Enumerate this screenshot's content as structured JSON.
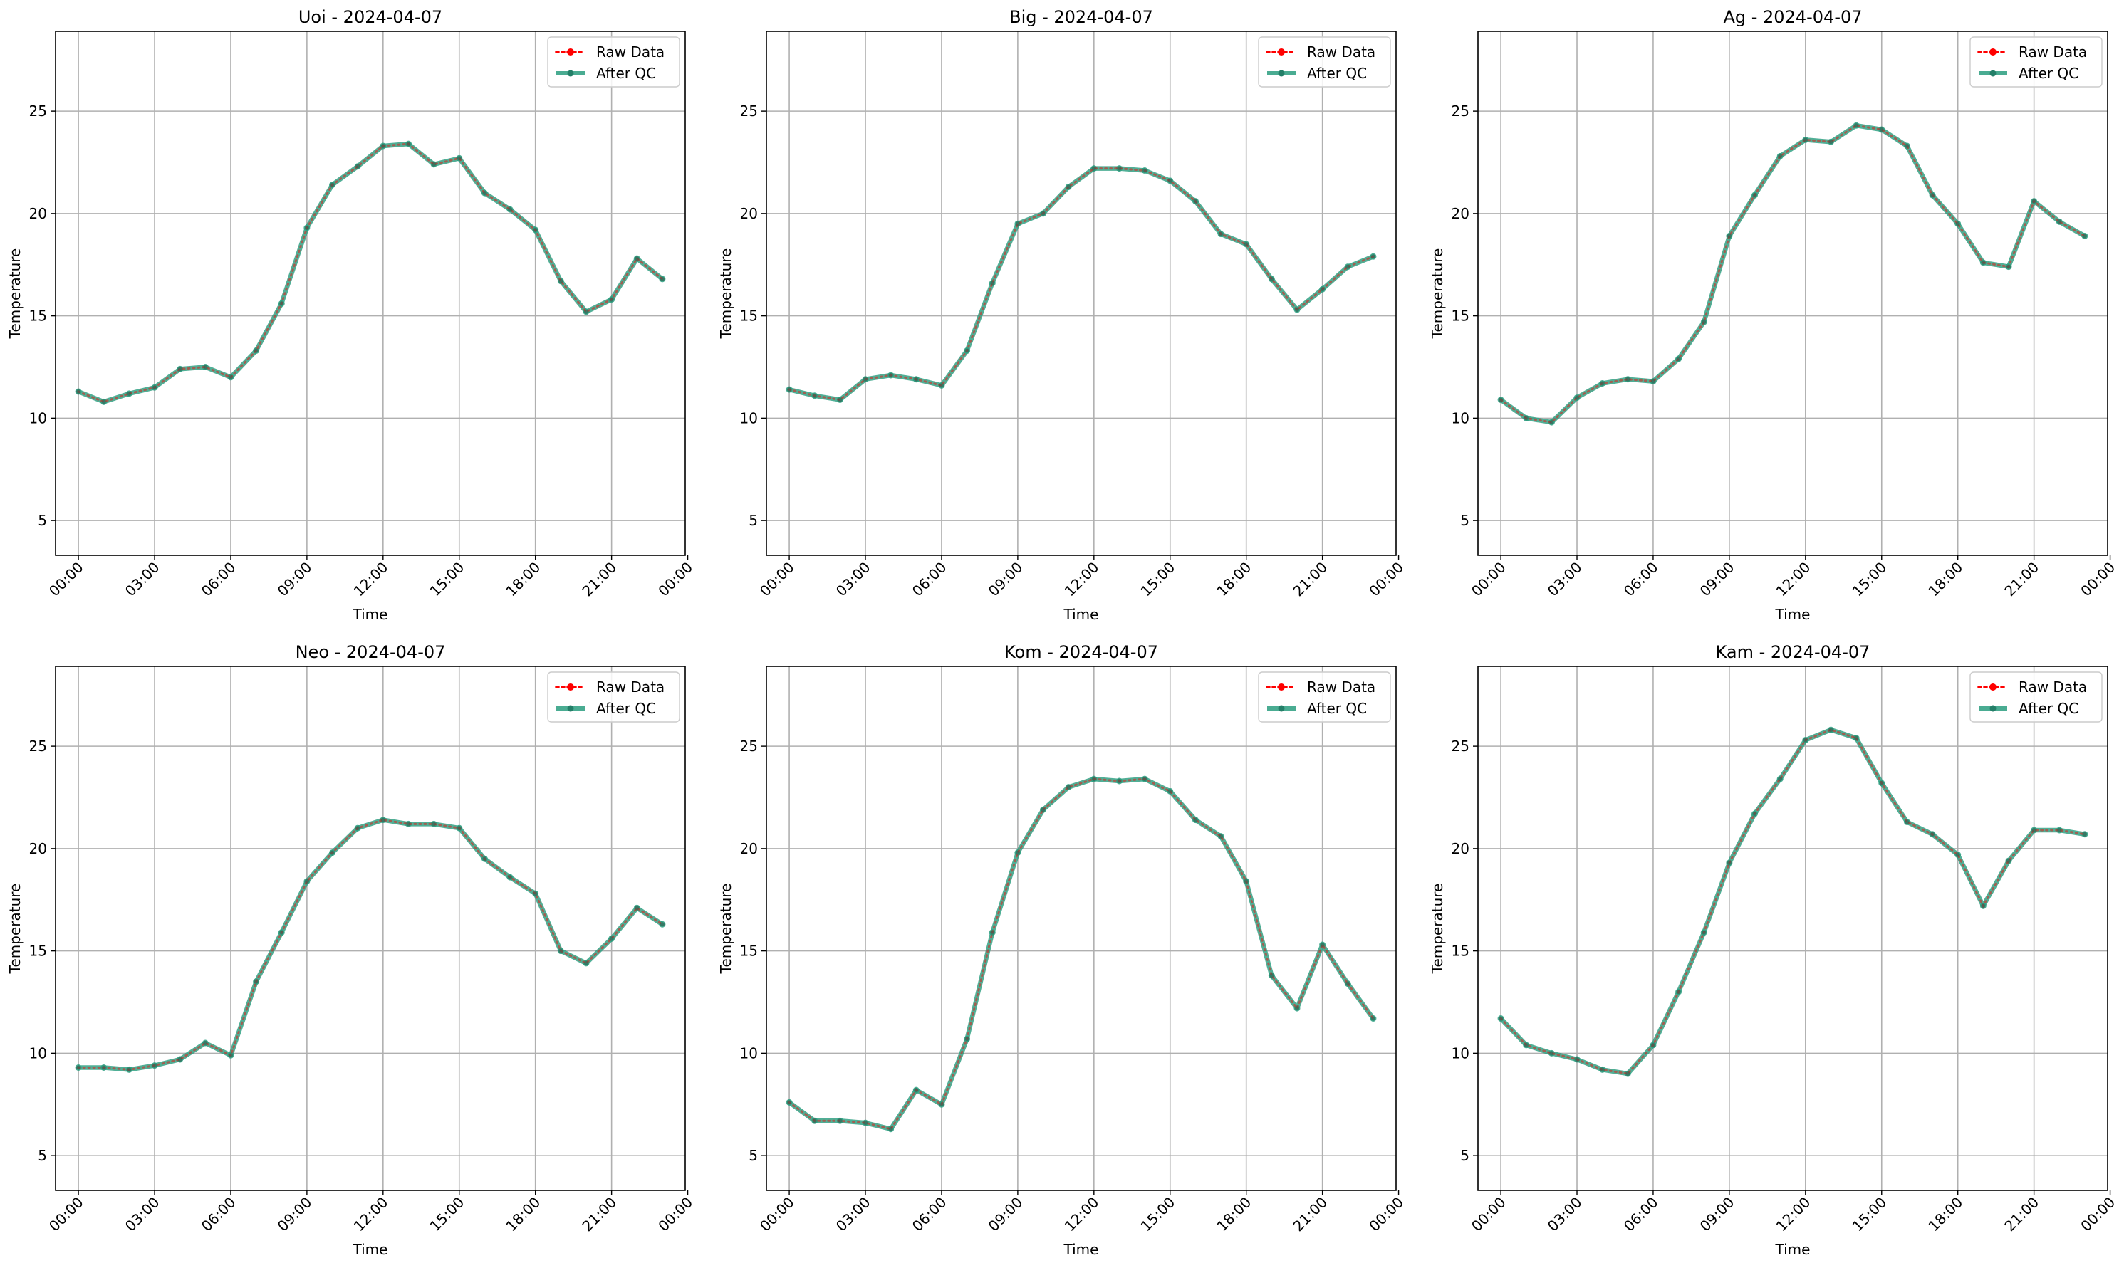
{
  "chart_data": [
    {
      "type": "line",
      "title": "Uoi - 2024-04-07",
      "xlabel": "Time",
      "ylabel": "Temperature",
      "ylim": [
        3.3,
        28.9
      ],
      "xlim": [
        -0.9,
        23.9
      ],
      "yticks": [
        5,
        10,
        15,
        20,
        25
      ],
      "xticks": [
        0,
        3,
        6,
        9,
        12,
        15,
        18,
        21,
        24
      ],
      "xtick_labels": [
        "00:00",
        "03:00",
        "06:00",
        "09:00",
        "12:00",
        "15:00",
        "18:00",
        "21:00",
        "00:00"
      ],
      "grid": true,
      "legend_position": "top-right",
      "x": [
        0,
        1,
        2,
        3,
        4,
        5,
        6,
        7,
        8,
        9,
        10,
        11,
        12,
        13,
        14,
        15,
        16,
        17,
        18,
        19,
        20,
        21,
        22,
        23
      ],
      "series": [
        {
          "name": "Raw Data",
          "color": "#ff0000",
          "style": "dotted",
          "values": [
            11.3,
            10.8,
            11.2,
            11.5,
            12.4,
            12.5,
            12.0,
            13.3,
            15.6,
            19.3,
            21.4,
            22.3,
            23.3,
            23.4,
            22.4,
            22.7,
            21.0,
            20.2,
            19.2,
            16.7,
            15.2,
            15.8,
            17.8,
            16.8
          ]
        },
        {
          "name": "After QC",
          "color": "#2a9d7f",
          "style": "solid",
          "values": [
            11.3,
            10.8,
            11.2,
            11.5,
            12.4,
            12.5,
            12.0,
            13.3,
            15.6,
            19.3,
            21.4,
            22.3,
            23.3,
            23.4,
            22.4,
            22.7,
            21.0,
            20.2,
            19.2,
            16.7,
            15.2,
            15.8,
            17.8,
            16.8
          ]
        }
      ]
    },
    {
      "type": "line",
      "title": "Big - 2024-04-07",
      "xlabel": "Time",
      "ylabel": "Temperature",
      "ylim": [
        3.3,
        28.9
      ],
      "xlim": [
        -0.9,
        23.9
      ],
      "yticks": [
        5,
        10,
        15,
        20,
        25
      ],
      "xticks": [
        0,
        3,
        6,
        9,
        12,
        15,
        18,
        21,
        24
      ],
      "xtick_labels": [
        "00:00",
        "03:00",
        "06:00",
        "09:00",
        "12:00",
        "15:00",
        "18:00",
        "21:00",
        "00:00"
      ],
      "grid": true,
      "legend_position": "top-right",
      "x": [
        0,
        1,
        2,
        3,
        4,
        5,
        6,
        7,
        8,
        9,
        10,
        11,
        12,
        13,
        14,
        15,
        16,
        17,
        18,
        19,
        20,
        21,
        22,
        23
      ],
      "series": [
        {
          "name": "Raw Data",
          "color": "#ff0000",
          "style": "dotted",
          "values": [
            11.4,
            11.1,
            10.9,
            11.9,
            12.1,
            11.9,
            11.6,
            13.3,
            16.6,
            19.5,
            20.0,
            21.3,
            22.2,
            22.2,
            22.1,
            21.6,
            20.6,
            19.0,
            18.5,
            16.8,
            15.3,
            16.3,
            17.4,
            17.9
          ]
        },
        {
          "name": "After QC",
          "color": "#2a9d7f",
          "style": "solid",
          "values": [
            11.4,
            11.1,
            10.9,
            11.9,
            12.1,
            11.9,
            11.6,
            13.3,
            16.6,
            19.5,
            20.0,
            21.3,
            22.2,
            22.2,
            22.1,
            21.6,
            20.6,
            19.0,
            18.5,
            16.8,
            15.3,
            16.3,
            17.4,
            17.9
          ]
        }
      ]
    },
    {
      "type": "line",
      "title": "Ag - 2024-04-07",
      "xlabel": "Time",
      "ylabel": "Temperature",
      "ylim": [
        3.3,
        28.9
      ],
      "xlim": [
        -0.9,
        23.9
      ],
      "yticks": [
        5,
        10,
        15,
        20,
        25
      ],
      "xticks": [
        0,
        3,
        6,
        9,
        12,
        15,
        18,
        21,
        24
      ],
      "xtick_labels": [
        "00:00",
        "03:00",
        "06:00",
        "09:00",
        "12:00",
        "15:00",
        "18:00",
        "21:00",
        "00:00"
      ],
      "grid": true,
      "legend_position": "top-right",
      "x": [
        0,
        1,
        2,
        3,
        4,
        5,
        6,
        7,
        8,
        9,
        10,
        11,
        12,
        13,
        14,
        15,
        16,
        17,
        18,
        19,
        20,
        21,
        22,
        23
      ],
      "series": [
        {
          "name": "Raw Data",
          "color": "#ff0000",
          "style": "dotted",
          "values": [
            10.9,
            10.0,
            9.8,
            11.0,
            11.7,
            11.9,
            11.8,
            12.9,
            14.7,
            18.9,
            20.9,
            22.8,
            23.6,
            23.5,
            24.3,
            24.1,
            23.3,
            20.9,
            19.5,
            17.6,
            17.4,
            20.6,
            19.6,
            18.9
          ]
        },
        {
          "name": "After QC",
          "color": "#2a9d7f",
          "style": "solid",
          "values": [
            10.9,
            10.0,
            9.8,
            11.0,
            11.7,
            11.9,
            11.8,
            12.9,
            14.7,
            18.9,
            20.9,
            22.8,
            23.6,
            23.5,
            24.3,
            24.1,
            23.3,
            20.9,
            19.5,
            17.6,
            17.4,
            20.6,
            19.6,
            18.9
          ]
        }
      ]
    },
    {
      "type": "line",
      "title": "Neo - 2024-04-07",
      "xlabel": "Time",
      "ylabel": "Temperature",
      "ylim": [
        3.3,
        28.9
      ],
      "xlim": [
        -0.9,
        23.9
      ],
      "yticks": [
        5,
        10,
        15,
        20,
        25
      ],
      "xticks": [
        0,
        3,
        6,
        9,
        12,
        15,
        18,
        21,
        24
      ],
      "xtick_labels": [
        "00:00",
        "03:00",
        "06:00",
        "09:00",
        "12:00",
        "15:00",
        "18:00",
        "21:00",
        "00:00"
      ],
      "grid": true,
      "legend_position": "top-right",
      "x": [
        0,
        1,
        2,
        3,
        4,
        5,
        6,
        7,
        8,
        9,
        10,
        11,
        12,
        13,
        14,
        15,
        16,
        17,
        18,
        19,
        20,
        21,
        22,
        23
      ],
      "series": [
        {
          "name": "Raw Data",
          "color": "#ff0000",
          "style": "dotted",
          "values": [
            9.3,
            9.3,
            9.2,
            9.4,
            9.7,
            10.5,
            9.9,
            13.5,
            15.9,
            18.4,
            19.8,
            21.0,
            21.4,
            21.2,
            21.2,
            21.0,
            19.5,
            18.6,
            17.8,
            15.0,
            14.4,
            15.6,
            17.1,
            16.3
          ]
        },
        {
          "name": "After QC",
          "color": "#2a9d7f",
          "style": "solid",
          "values": [
            9.3,
            9.3,
            9.2,
            9.4,
            9.7,
            10.5,
            9.9,
            13.5,
            15.9,
            18.4,
            19.8,
            21.0,
            21.4,
            21.2,
            21.2,
            21.0,
            19.5,
            18.6,
            17.8,
            15.0,
            14.4,
            15.6,
            17.1,
            16.3
          ]
        }
      ]
    },
    {
      "type": "line",
      "title": "Kom - 2024-04-07",
      "xlabel": "Time",
      "ylabel": "Temperature",
      "ylim": [
        3.3,
        28.9
      ],
      "xlim": [
        -0.9,
        23.9
      ],
      "yticks": [
        5,
        10,
        15,
        20,
        25
      ],
      "xticks": [
        0,
        3,
        6,
        9,
        12,
        15,
        18,
        21,
        24
      ],
      "xtick_labels": [
        "00:00",
        "03:00",
        "06:00",
        "09:00",
        "12:00",
        "15:00",
        "18:00",
        "21:00",
        "00:00"
      ],
      "grid": true,
      "legend_position": "top-right",
      "x": [
        0,
        1,
        2,
        3,
        4,
        5,
        6,
        7,
        8,
        9,
        10,
        11,
        12,
        13,
        14,
        15,
        16,
        17,
        18,
        19,
        20,
        21,
        22,
        23
      ],
      "series": [
        {
          "name": "Raw Data",
          "color": "#ff0000",
          "style": "dotted",
          "values": [
            7.6,
            6.7,
            6.7,
            6.6,
            6.3,
            8.2,
            7.5,
            10.7,
            15.9,
            19.8,
            21.9,
            23.0,
            23.4,
            23.3,
            23.4,
            22.8,
            21.4,
            20.6,
            18.4,
            13.8,
            12.2,
            15.3,
            13.4,
            11.7
          ]
        },
        {
          "name": "After QC",
          "color": "#2a9d7f",
          "style": "solid",
          "values": [
            7.6,
            6.7,
            6.7,
            6.6,
            6.3,
            8.2,
            7.5,
            10.7,
            15.9,
            19.8,
            21.9,
            23.0,
            23.4,
            23.3,
            23.4,
            22.8,
            21.4,
            20.6,
            18.4,
            13.8,
            12.2,
            15.3,
            13.4,
            11.7
          ]
        }
      ]
    },
    {
      "type": "line",
      "title": "Kam - 2024-04-07",
      "xlabel": "Time",
      "ylabel": "Temperature",
      "ylim": [
        3.3,
        28.9
      ],
      "xlim": [
        -0.9,
        23.9
      ],
      "yticks": [
        5,
        10,
        15,
        20,
        25
      ],
      "xticks": [
        0,
        3,
        6,
        9,
        12,
        15,
        18,
        21,
        24
      ],
      "xtick_labels": [
        "00:00",
        "03:00",
        "06:00",
        "09:00",
        "12:00",
        "15:00",
        "18:00",
        "21:00",
        "00:00"
      ],
      "grid": true,
      "legend_position": "top-right",
      "x": [
        0,
        1,
        2,
        3,
        4,
        5,
        6,
        7,
        8,
        9,
        10,
        11,
        12,
        13,
        14,
        15,
        16,
        17,
        18,
        19,
        20,
        21,
        22,
        23
      ],
      "series": [
        {
          "name": "Raw Data",
          "color": "#ff0000",
          "style": "dotted",
          "values": [
            11.7,
            10.4,
            10.0,
            9.7,
            9.2,
            9.0,
            10.4,
            13.0,
            15.9,
            19.3,
            21.7,
            23.4,
            25.3,
            25.8,
            25.4,
            23.2,
            21.3,
            20.7,
            19.7,
            17.2,
            19.4,
            20.9,
            20.9,
            20.7
          ]
        },
        {
          "name": "After QC",
          "color": "#2a9d7f",
          "style": "solid",
          "values": [
            11.7,
            10.4,
            10.0,
            9.7,
            9.2,
            9.0,
            10.4,
            13.0,
            15.9,
            19.3,
            21.7,
            23.4,
            25.3,
            25.8,
            25.4,
            23.2,
            21.3,
            20.7,
            19.7,
            17.2,
            19.4,
            20.9,
            20.9,
            20.7
          ]
        }
      ]
    }
  ]
}
